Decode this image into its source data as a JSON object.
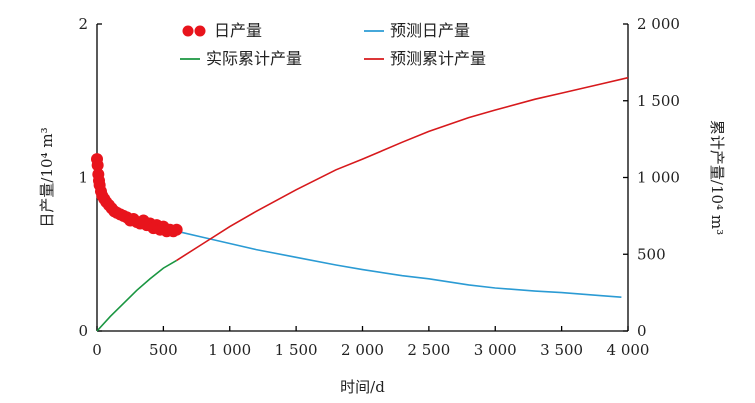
{
  "chart_data": {
    "type": "line",
    "title": "",
    "xlabel": "时间/d",
    "ylabel_left": "日产量/10⁴ m³",
    "ylabel_right": "累计产量/10⁴ m³",
    "xlim": [
      0,
      4000
    ],
    "ylim_left": [
      0,
      2
    ],
    "ylim_right": [
      0,
      2000
    ],
    "x_ticks": [
      0,
      500,
      1000,
      1500,
      2000,
      2500,
      3000,
      3500,
      4000
    ],
    "x_tick_labels": [
      "0",
      "500",
      "1 000",
      "1 500",
      "2 000",
      "2 500",
      "3 000",
      "3 500",
      "4 000"
    ],
    "y_left_ticks": [
      0,
      1,
      2
    ],
    "y_left_tick_labels": [
      "0",
      "1",
      "2"
    ],
    "y_right_ticks": [
      0,
      500,
      1000,
      1500,
      2000
    ],
    "y_right_tick_labels": [
      "0",
      "500",
      "1 000",
      "1 500",
      "2 000"
    ],
    "grid": false,
    "legend_position": "top",
    "series": [
      {
        "name": "日产量",
        "type": "scatter",
        "axis": "left",
        "color": "#e8141c",
        "x": [
          0,
          5,
          10,
          15,
          20,
          30,
          40,
          55,
          70,
          90,
          110,
          130,
          150,
          175,
          200,
          225,
          250,
          275,
          300,
          325,
          350,
          375,
          400,
          425,
          450,
          475,
          500,
          525,
          550,
          575,
          600
        ],
        "y": [
          1.12,
          1.08,
          1.02,
          0.98,
          0.95,
          0.91,
          0.88,
          0.86,
          0.84,
          0.82,
          0.8,
          0.78,
          0.77,
          0.76,
          0.75,
          0.74,
          0.72,
          0.73,
          0.71,
          0.7,
          0.72,
          0.69,
          0.7,
          0.67,
          0.69,
          0.66,
          0.68,
          0.65,
          0.66,
          0.65,
          0.66
        ]
      },
      {
        "name": "预测日产量",
        "type": "line",
        "axis": "left",
        "color": "#2b9bd4",
        "x": [
          600,
          800,
          1000,
          1200,
          1500,
          1800,
          2000,
          2300,
          2500,
          2800,
          3000,
          3300,
          3500,
          3800,
          3950
        ],
        "y": [
          0.65,
          0.61,
          0.57,
          0.53,
          0.48,
          0.43,
          0.4,
          0.36,
          0.34,
          0.3,
          0.28,
          0.26,
          0.25,
          0.23,
          0.22
        ]
      },
      {
        "name": "实际累计产量",
        "type": "line",
        "axis": "right",
        "color": "#1a9641",
        "x": [
          0,
          100,
          200,
          300,
          400,
          500,
          600
        ],
        "y": [
          0,
          95,
          180,
          265,
          340,
          410,
          460
        ]
      },
      {
        "name": "预测累计产量",
        "type": "line",
        "axis": "right",
        "color": "#d7191c",
        "x": [
          600,
          800,
          1000,
          1200,
          1500,
          1800,
          2000,
          2300,
          2500,
          2800,
          3000,
          3300,
          3500,
          3800,
          4000
        ],
        "y": [
          460,
          570,
          680,
          780,
          920,
          1050,
          1120,
          1230,
          1300,
          1390,
          1440,
          1510,
          1550,
          1610,
          1650
        ]
      }
    ]
  }
}
